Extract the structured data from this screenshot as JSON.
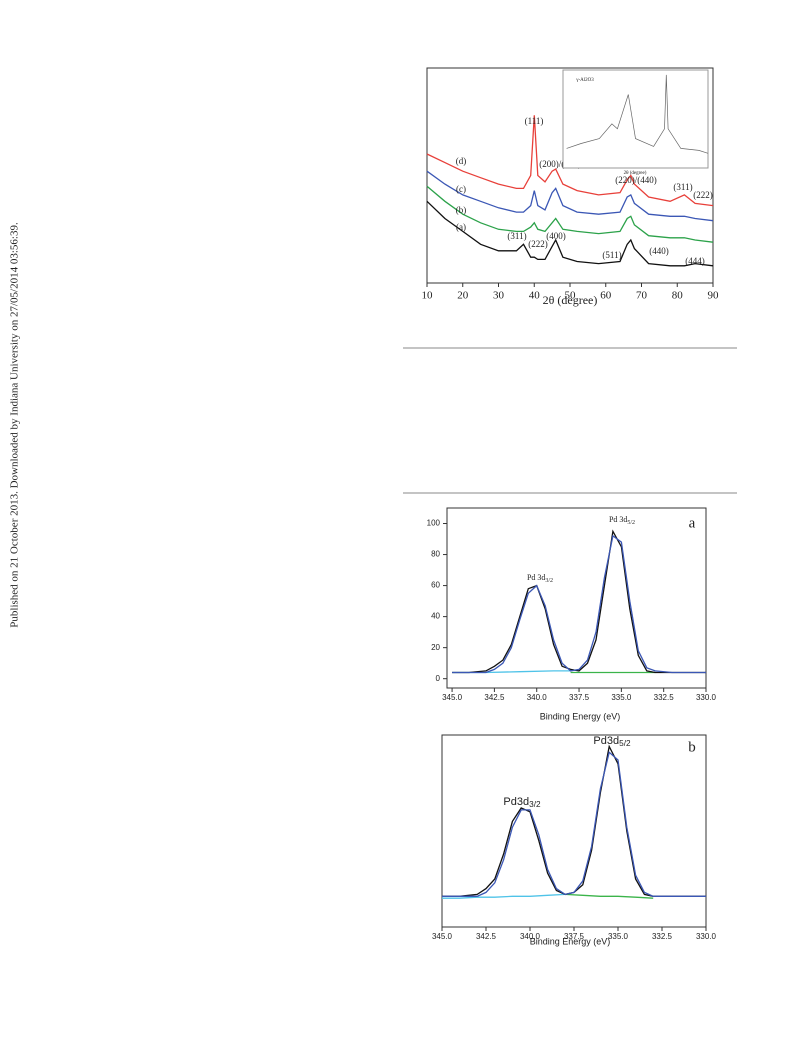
{
  "side_note": "Published on 21 October 2013. Downloaded by Indiana University on 27/05/2014 03:56:39.",
  "chart_data": [
    {
      "type": "line",
      "xlabel": "2θ (degree)",
      "xlim": [
        10,
        90
      ],
      "xticks": [
        10,
        20,
        30,
        40,
        50,
        60,
        70,
        80,
        90
      ],
      "ylim": [
        0,
        100
      ],
      "series": [
        {
          "name": "(a)",
          "color": "#111111",
          "x": [
            10,
            15,
            20,
            25,
            30,
            35,
            37,
            39,
            40,
            41,
            43,
            45,
            46,
            48,
            52,
            58,
            64,
            66,
            67,
            68,
            72,
            78,
            82,
            85,
            90
          ],
          "values": [
            38,
            30,
            24,
            18,
            15,
            15,
            18,
            12,
            12,
            11,
            11,
            17,
            20,
            12,
            10,
            9,
            10,
            18,
            20,
            16,
            9,
            8,
            8,
            9,
            8
          ]
        },
        {
          "name": "(b)",
          "color": "#2ca24a",
          "x": [
            10,
            15,
            20,
            25,
            30,
            35,
            37,
            39,
            40,
            41,
            43,
            45,
            46,
            48,
            52,
            58,
            64,
            66,
            67,
            68,
            72,
            78,
            82,
            85,
            90
          ],
          "values": [
            45,
            38,
            32,
            28,
            25,
            24,
            24,
            26,
            28,
            25,
            24,
            28,
            30,
            25,
            24,
            23,
            24,
            30,
            31,
            27,
            22,
            21,
            21,
            20,
            19
          ]
        },
        {
          "name": "(c)",
          "color": "#3b57b5",
          "x": [
            10,
            15,
            20,
            25,
            30,
            35,
            37,
            39,
            40,
            41,
            43,
            45,
            46,
            48,
            52,
            58,
            64,
            66,
            67,
            68,
            72,
            78,
            82,
            85,
            90
          ],
          "values": [
            52,
            46,
            41,
            38,
            35,
            33,
            33,
            36,
            43,
            36,
            34,
            42,
            44,
            36,
            33,
            32,
            33,
            40,
            41,
            37,
            32,
            31,
            31,
            30,
            29
          ]
        },
        {
          "name": "(d)",
          "color": "#e8403a",
          "x": [
            10,
            15,
            20,
            25,
            30,
            35,
            37,
            39,
            40,
            41,
            43,
            45,
            46,
            48,
            52,
            58,
            64,
            66,
            67,
            68,
            72,
            78,
            82,
            85,
            90
          ],
          "values": [
            60,
            56,
            52,
            49,
            46,
            44,
            44,
            50,
            78,
            50,
            47,
            52,
            53,
            46,
            43,
            41,
            42,
            48,
            50,
            46,
            40,
            38,
            41,
            37,
            36
          ]
        }
      ],
      "annotations": [
        "(111)",
        "(200)/(400)",
        "(220)/(440)",
        "(311)",
        "(222)",
        "(311)",
        "(222)",
        "(400)",
        "(511)",
        "(440)",
        "(444)"
      ]
    },
    {
      "type": "line",
      "title": "γ-Al2O3",
      "xlabel": "2θ (degree)",
      "xlim": [
        10,
        90
      ],
      "ylim": [
        0,
        100
      ],
      "series": [
        {
          "color": "#666666",
          "x": [
            12,
            20,
            30,
            37,
            40,
            46,
            50,
            60,
            66,
            67,
            68,
            75,
            85,
            90
          ],
          "values": [
            20,
            25,
            30,
            45,
            40,
            75,
            30,
            22,
            40,
            95,
            40,
            20,
            18,
            15
          ]
        }
      ]
    },
    {
      "type": "line",
      "xlabel": "Binding Energy (eV)",
      "panel": "a",
      "xlim": [
        345.3,
        330
      ],
      "ylim": [
        -6,
        110
      ],
      "xticks": [
        {
          "value": 345,
          "label": "345.0"
        },
        {
          "value": 342.5,
          "label": "342.5"
        },
        {
          "value": 340,
          "label": "340.0"
        },
        {
          "value": 337.5,
          "label": "337.5"
        },
        {
          "value": 335,
          "label": "335.0"
        },
        {
          "value": 332.5,
          "label": "332.5"
        },
        {
          "value": 330,
          "label": "330.0"
        }
      ],
      "yticks": [
        0,
        20,
        40,
        60,
        80,
        100
      ],
      "series": [
        {
          "color": "#4fc3e8",
          "x": [
            345,
            343,
            341,
            339,
            338
          ],
          "values": [
            4,
            4,
            4.5,
            5,
            5
          ]
        },
        {
          "color": "#3bb44a",
          "x": [
            338,
            336,
            334,
            333
          ],
          "values": [
            4,
            4,
            4,
            4
          ]
        },
        {
          "color": "#111111",
          "x": [
            345,
            344,
            343,
            342.5,
            342,
            341.5,
            341,
            340.5,
            340,
            339.5,
            339,
            338.5,
            338,
            337.5,
            337,
            336.5,
            336,
            335.5,
            335,
            334.5,
            334,
            333.5,
            333,
            332,
            331,
            330
          ],
          "values": [
            4,
            4,
            5,
            8,
            12,
            22,
            40,
            58,
            60,
            45,
            22,
            8,
            6,
            5,
            10,
            25,
            60,
            95,
            85,
            45,
            15,
            5,
            4,
            4,
            4,
            4
          ]
        },
        {
          "color": "#3b57b5",
          "x": [
            345,
            344,
            343,
            342.5,
            342,
            341.5,
            341,
            340.5,
            340,
            339.5,
            339,
            338.5,
            338,
            337.5,
            337,
            336.5,
            336,
            335.5,
            335,
            334.5,
            334,
            333.5,
            333,
            332,
            331,
            330
          ],
          "values": [
            4,
            4,
            4,
            6,
            10,
            20,
            38,
            55,
            60,
            47,
            25,
            10,
            5,
            6,
            12,
            30,
            65,
            92,
            88,
            50,
            18,
            7,
            5,
            4,
            4,
            4
          ]
        }
      ],
      "annotations": [
        {
          "text": "Pd 3d",
          "subscript": "5/2"
        },
        {
          "text": "Pd 3d",
          "subscript": "3/2"
        }
      ]
    },
    {
      "type": "line",
      "xlabel": "Binding Energy (eV)",
      "panel": "b",
      "xlim": [
        345,
        330
      ],
      "ylim": [
        0,
        100
      ],
      "xticks": [
        {
          "value": 345,
          "label": "345.0"
        },
        {
          "value": 342.5,
          "label": "342.5"
        },
        {
          "value": 340,
          "label": "340.0"
        },
        {
          "value": 337.5,
          "label": "337.5"
        },
        {
          "value": 335,
          "label": "335.0"
        },
        {
          "value": 332.5,
          "label": "332.5"
        },
        {
          "value": 330,
          "label": "330.0"
        }
      ],
      "series": [
        {
          "color": "#4fc3e8",
          "x": [
            345,
            344,
            343,
            342,
            341,
            340,
            339,
            338
          ],
          "values": [
            15,
            15,
            15.5,
            15.5,
            16,
            16,
            16.5,
            17
          ]
        },
        {
          "color": "#3bb44a",
          "x": [
            338,
            337,
            336,
            335,
            334,
            333
          ],
          "values": [
            17,
            16.5,
            16,
            16,
            15.5,
            15
          ]
        },
        {
          "color": "#111111",
          "x": [
            345,
            344,
            343,
            342.5,
            342,
            341.5,
            341,
            340.5,
            340,
            339.5,
            339,
            338.5,
            338,
            337.5,
            337,
            336.5,
            336,
            335.5,
            335,
            334.5,
            334,
            333.5,
            333,
            332,
            331,
            330
          ],
          "values": [
            16,
            16,
            17,
            20,
            25,
            38,
            55,
            62,
            60,
            45,
            28,
            19,
            17,
            18,
            22,
            40,
            70,
            94,
            85,
            50,
            25,
            17,
            16,
            16,
            16,
            16
          ]
        },
        {
          "color": "#3b57b5",
          "x": [
            345,
            344,
            343,
            342.5,
            342,
            341.5,
            341,
            340.5,
            340,
            339.5,
            339,
            338.5,
            338,
            337.5,
            337,
            336.5,
            336,
            335.5,
            335,
            334.5,
            334,
            333.5,
            333,
            332,
            331,
            330
          ],
          "values": [
            16,
            16,
            16,
            18,
            23,
            35,
            52,
            61,
            61,
            48,
            30,
            20,
            17,
            18,
            24,
            42,
            72,
            91,
            87,
            52,
            27,
            18,
            16,
            16,
            16,
            16
          ]
        }
      ],
      "annotations": [
        {
          "text": "Pd3d",
          "subscript": "5/2"
        },
        {
          "text": "Pd3d",
          "subscript": "3/2"
        }
      ]
    }
  ]
}
